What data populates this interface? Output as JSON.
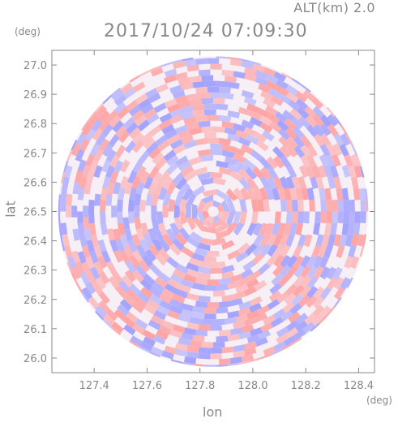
{
  "chart_data": {
    "type": "heatmap",
    "title": "2017/10/24 07:09:30",
    "altitude_label": "ALT(km) 2.0",
    "xlabel": "lon",
    "ylabel": "lat",
    "x_unit": "(deg)",
    "y_unit": "(deg)",
    "xlim": [
      127.24,
      128.46
    ],
    "ylim": [
      25.95,
      27.05
    ],
    "x_ticks": [
      "127.4",
      "127.6",
      "127.8",
      "128.0",
      "128.2",
      "128.4"
    ],
    "x_tick_values": [
      127.4,
      127.6,
      127.8,
      128.0,
      128.2,
      128.4
    ],
    "y_ticks": [
      "26.0",
      "26.1",
      "26.2",
      "26.3",
      "26.4",
      "26.5",
      "26.6",
      "26.7",
      "26.8",
      "26.9",
      "27.0"
    ],
    "y_tick_values": [
      26.0,
      26.1,
      26.2,
      26.3,
      26.4,
      26.5,
      26.6,
      26.7,
      26.8,
      26.9,
      27.0
    ],
    "center": [
      127.85,
      26.5
    ],
    "radius_deg_lat": 0.53,
    "colors": {
      "positive": "#ff9a9a",
      "negative": "#9a9aff",
      "neutral": "#ffffff",
      "axis": "#888888"
    }
  }
}
